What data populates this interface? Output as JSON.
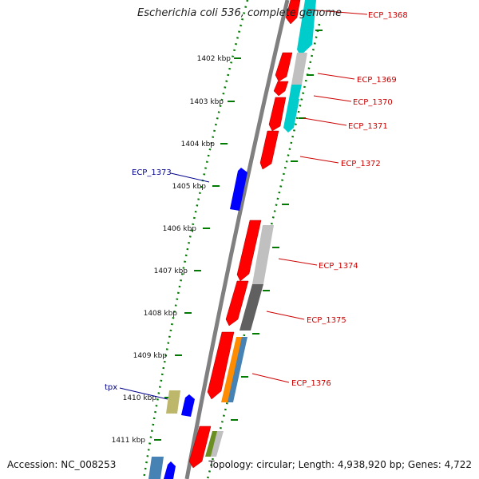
{
  "title": "Escherichia coli 536, complete genome",
  "footer": {
    "accession": "Accession: NC_008253",
    "topology": "Topology: circular;",
    "length": "Length: 4,938,920 bp;",
    "genes": "Genes: 4,722"
  },
  "colors": {
    "backbone": "#808080",
    "tick": "#007a00",
    "forward_feature": "#0000ff",
    "reverse_feature": "#ff0000",
    "forward_label": "#00008b",
    "reverse_label": "#cc0000",
    "cog_cyan": "#00cccc",
    "cog_light_gray": "#c0c0c0",
    "cog_dark_gray": "#606060",
    "cog_orange": "#ff8c00",
    "cog_steelblue": "#4682b4",
    "cog_khaki": "#bdb76b",
    "cog_olive": "#6b8e23"
  },
  "ruler": {
    "unit": "kbp",
    "labels": [
      "1402 kbp",
      "1403 kbp",
      "1404 kbp",
      "1405 kbp",
      "1406 kbp",
      "1407 kbp",
      "1408 kbp",
      "1409 kbp",
      "1410 kbp",
      "1411 kbp"
    ]
  },
  "gene_labels": {
    "reverse_strand": [
      "ECP_1368",
      "ECP_1369",
      "ECP_1370",
      "ECP_1371",
      "ECP_1372",
      "ECP_1374",
      "ECP_1375",
      "ECP_1376"
    ],
    "forward_strand": [
      "ECP_1373",
      "tpx"
    ]
  }
}
